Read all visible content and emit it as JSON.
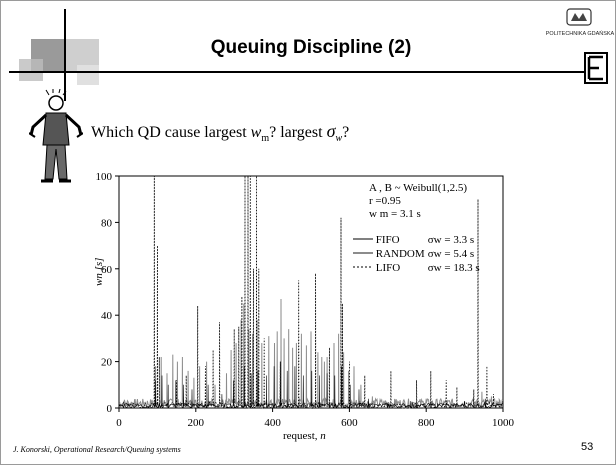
{
  "slide": {
    "title": "Queuing Discipline (2)",
    "logo_text": "POLITECHNIKA GDAŃSKA",
    "logo_mark": "ETI",
    "question_start": "Which QD cause largest ",
    "question_w": "w",
    "question_m": "m",
    "question_mid": "? largest ",
    "question_sigma": "σ",
    "question_sub_w": "w",
    "question_end": "?",
    "footer": "J. Konorski, Operational Research/Queuing systems",
    "page_number": "53"
  },
  "colors": {
    "fifo": "#000000",
    "random": "#8c8c8c",
    "lifo": "#000000",
    "deco_dark": "#9a9a9a",
    "deco_light": "#c8c8c8"
  },
  "chart_data": {
    "type": "line",
    "x_range": [
      0,
      1000
    ],
    "ylim": [
      0,
      100
    ],
    "x_ticks": [
      "0",
      "200",
      "400",
      "600",
      "800",
      "1000"
    ],
    "y_ticks": [
      "0",
      "20",
      "40",
      "60",
      "80",
      "100"
    ],
    "xlabel_text": "request, ",
    "xlabel_var": "n",
    "ylabel": "wn [s]",
    "annotations": {
      "line1": "A , B ~  Weibull(1,2.5)",
      "line2": "r =0.95",
      "line3": "w m = 3.1 s"
    },
    "legend": [
      {
        "name": "FIFO",
        "style": "solid",
        "sigma": "σw =   3.3 s"
      },
      {
        "name": "RANDOM",
        "style": "gray",
        "sigma": "σw =   5.4 s"
      },
      {
        "name": "LIFO",
        "style": "dotted",
        "sigma": "σw = 18.3 s"
      }
    ],
    "lifo_peaks": [
      [
        92,
        100
      ],
      [
        100,
        70
      ],
      [
        105,
        22
      ],
      [
        150,
        12
      ],
      [
        175,
        14
      ],
      [
        205,
        44
      ],
      [
        225,
        18
      ],
      [
        245,
        25
      ],
      [
        262,
        37
      ],
      [
        300,
        34
      ],
      [
        312,
        35
      ],
      [
        320,
        48
      ],
      [
        328,
        100
      ],
      [
        336,
        100
      ],
      [
        342,
        100
      ],
      [
        350,
        60
      ],
      [
        358,
        100
      ],
      [
        364,
        60
      ],
      [
        378,
        30
      ],
      [
        420,
        20
      ],
      [
        468,
        55
      ],
      [
        512,
        58
      ],
      [
        548,
        26
      ],
      [
        578,
        82
      ],
      [
        582,
        45
      ],
      [
        600,
        20
      ],
      [
        640,
        14
      ],
      [
        708,
        16
      ],
      [
        775,
        12
      ],
      [
        812,
        16
      ],
      [
        852,
        12
      ],
      [
        880,
        9
      ],
      [
        924,
        8
      ],
      [
        935,
        90
      ],
      [
        958,
        18
      ],
      [
        975,
        6
      ]
    ],
    "random_peaks": [
      [
        40,
        3
      ],
      [
        95,
        18
      ],
      [
        110,
        22
      ],
      [
        125,
        15
      ],
      [
        140,
        23
      ],
      [
        152,
        20
      ],
      [
        165,
        22
      ],
      [
        180,
        16
      ],
      [
        195,
        13
      ],
      [
        210,
        18
      ],
      [
        228,
        20
      ],
      [
        250,
        10
      ],
      [
        280,
        15
      ],
      [
        292,
        25
      ],
      [
        305,
        28
      ],
      [
        318,
        38
      ],
      [
        325,
        45
      ],
      [
        338,
        34
      ],
      [
        348,
        32
      ],
      [
        360,
        38
      ],
      [
        372,
        28
      ],
      [
        390,
        31
      ],
      [
        405,
        28
      ],
      [
        412,
        33
      ],
      [
        422,
        47
      ],
      [
        430,
        30
      ],
      [
        442,
        34
      ],
      [
        452,
        26
      ],
      [
        462,
        28
      ],
      [
        475,
        32
      ],
      [
        488,
        27
      ],
      [
        500,
        33
      ],
      [
        518,
        24
      ],
      [
        528,
        22
      ],
      [
        535,
        20
      ],
      [
        542,
        22
      ],
      [
        560,
        28
      ],
      [
        572,
        32
      ],
      [
        585,
        24
      ],
      [
        598,
        16
      ],
      [
        612,
        18
      ],
      [
        630,
        10
      ],
      [
        660,
        5
      ],
      [
        720,
        3
      ],
      [
        800,
        4
      ],
      [
        860,
        3
      ],
      [
        945,
        7
      ],
      [
        970,
        5
      ],
      [
        990,
        2
      ]
    ],
    "fifo_peaks": [
      [
        95,
        12
      ],
      [
        112,
        14
      ],
      [
        128,
        10
      ],
      [
        148,
        12
      ],
      [
        168,
        10
      ],
      [
        190,
        8
      ],
      [
        232,
        10
      ],
      [
        268,
        6
      ],
      [
        298,
        12
      ],
      [
        326,
        18
      ],
      [
        344,
        15
      ],
      [
        362,
        16
      ],
      [
        384,
        14
      ],
      [
        404,
        18
      ],
      [
        420,
        20
      ],
      [
        438,
        16
      ],
      [
        458,
        18
      ],
      [
        480,
        14
      ],
      [
        502,
        16
      ],
      [
        522,
        14
      ],
      [
        542,
        15
      ],
      [
        562,
        14
      ],
      [
        580,
        18
      ],
      [
        602,
        10
      ],
      [
        625,
        8
      ],
      [
        650,
        4
      ],
      [
        700,
        2
      ],
      [
        760,
        3
      ],
      [
        830,
        2
      ],
      [
        900,
        3
      ],
      [
        955,
        4
      ]
    ]
  }
}
